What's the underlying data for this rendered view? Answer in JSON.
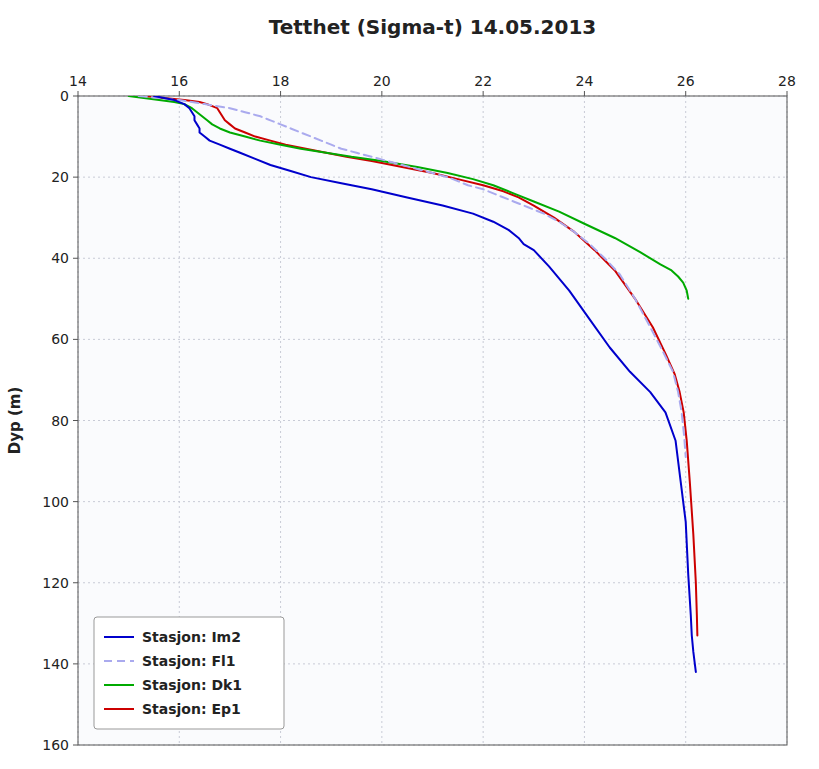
{
  "chart_data": {
    "type": "line",
    "title": "Tetthet (Sigma-t) 14.05.2013",
    "y_label": "Dyp (m)",
    "xlim": [
      14,
      28
    ],
    "ylim": [
      160,
      0
    ],
    "xticks": [
      14,
      16,
      18,
      20,
      22,
      24,
      26,
      28
    ],
    "yticks": [
      0,
      20,
      40,
      60,
      80,
      100,
      120,
      140,
      160
    ],
    "grid": true,
    "legend": "lower left",
    "series": [
      {
        "name": "Stasjon: Im2",
        "color": "#0000cc",
        "line_style": "solid",
        "x": [
          15.5,
          15.7,
          15.9,
          16.1,
          16.2,
          16.25,
          16.3,
          16.3,
          16.35,
          16.4,
          16.4,
          16.5,
          16.6,
          16.8,
          17.0,
          17.2,
          17.5,
          17.8,
          18.2,
          18.6,
          19.2,
          19.8,
          20.5,
          21.2,
          21.8,
          22.2,
          22.5,
          22.7,
          22.8,
          23.0,
          23.3,
          23.7,
          24.1,
          24.5,
          24.9,
          25.3,
          25.6,
          25.8,
          25.9,
          26.0,
          26.05,
          26.1,
          26.12,
          26.15,
          26.18,
          26.2
        ],
        "values": [
          0,
          0.5,
          1.0,
          2.0,
          3.0,
          4.0,
          5.0,
          6.0,
          7.0,
          8.0,
          9.0,
          10.0,
          11.0,
          12.0,
          13.0,
          14.0,
          15.5,
          17.0,
          18.5,
          20.0,
          21.5,
          23.0,
          25.0,
          27.0,
          29.0,
          31.0,
          33.0,
          35.0,
          36.5,
          38.0,
          42.0,
          48.0,
          55.0,
          62.0,
          68.0,
          73.0,
          78.0,
          85.0,
          95.0,
          105.0,
          118.0,
          128.0,
          133.0,
          137.0,
          140.0,
          142.0
        ]
      },
      {
        "name": "Stasjon: Fl1",
        "color": "#aaaaee",
        "line_style": "dashed",
        "x": [
          15.2,
          15.6,
          16.0,
          16.5,
          17.0,
          17.3,
          17.6,
          17.8,
          18.0,
          18.2,
          18.4,
          18.6,
          18.8,
          19.0,
          19.2,
          19.5,
          19.8,
          20.1,
          20.4,
          20.7,
          21.0,
          21.3,
          21.5,
          21.7,
          22.0,
          22.3,
          22.6,
          22.9,
          23.2,
          23.5,
          23.8,
          24.1,
          24.4,
          24.7,
          25.0,
          25.3,
          25.55,
          25.75,
          25.85,
          25.92,
          25.97,
          26.0
        ],
        "values": [
          0,
          0.5,
          1.0,
          2.0,
          3.0,
          4.0,
          5.0,
          6.0,
          7.0,
          8.0,
          9.0,
          10.0,
          11.0,
          12.0,
          13.0,
          14.0,
          15.0,
          16.0,
          17.0,
          18.0,
          19.0,
          20.0,
          21.0,
          22.0,
          23.0,
          24.5,
          26.0,
          27.5,
          29.0,
          31.0,
          33.5,
          36.5,
          40.0,
          44.0,
          50.0,
          57.0,
          63.0,
          68.0,
          73.0,
          78.0,
          84.0,
          89.0
        ]
      },
      {
        "name": "Stasjon: Dk1",
        "color": "#00aa00",
        "line_style": "solid",
        "x": [
          15.0,
          15.3,
          15.6,
          15.9,
          16.1,
          16.25,
          16.35,
          16.45,
          16.55,
          16.65,
          16.8,
          17.0,
          17.3,
          17.6,
          18.0,
          18.4,
          18.9,
          19.4,
          20.0,
          20.7,
          21.3,
          21.8,
          22.2,
          22.6,
          23.0,
          23.5,
          24.0,
          24.6,
          25.1,
          25.5,
          25.72,
          25.85,
          25.95,
          26.02,
          26.05
        ],
        "values": [
          0,
          0.5,
          1.0,
          1.5,
          2.0,
          3.0,
          4.0,
          5.0,
          6.0,
          7.0,
          8.0,
          9.0,
          10.0,
          11.0,
          12.0,
          13.0,
          14.0,
          15.0,
          16.0,
          17.5,
          19.0,
          20.5,
          22.0,
          24.0,
          26.0,
          28.5,
          31.5,
          35.0,
          38.5,
          41.5,
          43.0,
          44.5,
          46.0,
          48.0,
          50.0
        ]
      },
      {
        "name": "Stasjon: Ep1",
        "color": "#cc0000",
        "line_style": "solid",
        "x": [
          15.3,
          15.7,
          16.1,
          16.4,
          16.55,
          16.65,
          16.75,
          16.8,
          16.85,
          16.9,
          17.0,
          17.1,
          17.3,
          17.5,
          17.8,
          18.1,
          18.5,
          18.9,
          19.3,
          19.8,
          20.4,
          21.0,
          21.5,
          22.0,
          22.4,
          22.7,
          23.0,
          23.4,
          23.8,
          24.2,
          24.6,
          25.0,
          25.35,
          25.6,
          25.78,
          25.88,
          25.96,
          26.02,
          26.08,
          26.15,
          26.2,
          26.22,
          26.23
        ],
        "values": [
          0,
          0.5,
          1.0,
          1.5,
          2.0,
          2.5,
          3.0,
          4.0,
          5.0,
          6.0,
          7.0,
          8.0,
          9.0,
          10.0,
          11.0,
          12.0,
          13.0,
          14.0,
          15.0,
          16.0,
          17.5,
          19.0,
          20.5,
          22.0,
          23.5,
          25.0,
          27.0,
          30.0,
          33.5,
          38.0,
          43.0,
          50.0,
          57.0,
          63.5,
          68.5,
          73.0,
          78.0,
          85.0,
          95.0,
          108.0,
          120.0,
          128.0,
          133.0
        ]
      }
    ]
  }
}
